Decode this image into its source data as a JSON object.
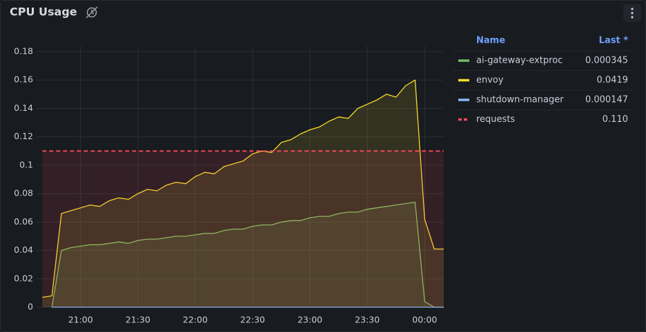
{
  "chart_data": {
    "type": "line",
    "title": "CPU Usage",
    "x": [
      "20:40",
      "20:45",
      "20:50",
      "20:55",
      "21:00",
      "21:05",
      "21:10",
      "21:15",
      "21:20",
      "21:25",
      "21:30",
      "21:35",
      "21:40",
      "21:45",
      "21:50",
      "21:55",
      "22:00",
      "22:05",
      "22:10",
      "22:15",
      "22:20",
      "22:25",
      "22:30",
      "22:35",
      "22:40",
      "22:45",
      "22:50",
      "22:55",
      "23:00",
      "23:05",
      "23:10",
      "23:15",
      "23:20",
      "23:25",
      "23:30",
      "23:35",
      "23:40",
      "23:45",
      "23:50",
      "23:55",
      "00:00",
      "00:05",
      "00:10"
    ],
    "xlim": [
      "20:37",
      "00:10"
    ],
    "xticks": [
      "21:00",
      "21:30",
      "22:00",
      "22:30",
      "23:00",
      "23:30",
      "00:00"
    ],
    "ylim": [
      0,
      0.18
    ],
    "yticks": [
      0,
      0.02,
      0.04,
      0.06,
      0.08,
      0.1,
      0.12,
      0.14,
      0.16,
      0.18
    ],
    "grid": true,
    "legend_columns": [
      "Name",
      "Last *"
    ],
    "series": [
      {
        "name": "ai-gateway-extproc",
        "color": "#73bf69",
        "last": 0.000345,
        "values": [
          null,
          0,
          0.04,
          0.042,
          0.043,
          0.044,
          0.044,
          0.045,
          0.046,
          0.045,
          0.047,
          0.048,
          0.048,
          0.049,
          0.05,
          0.05,
          0.051,
          0.052,
          0.052,
          0.054,
          0.055,
          0.055,
          0.057,
          0.058,
          0.058,
          0.06,
          0.061,
          0.061,
          0.063,
          0.064,
          0.064,
          0.066,
          0.067,
          0.067,
          0.069,
          0.07,
          0.071,
          0.072,
          0.073,
          0.074,
          0.004,
          0,
          0
        ]
      },
      {
        "name": "envoy",
        "color": "#fade2a",
        "last": 0.0419,
        "values": [
          0.007,
          0.008,
          0.066,
          0.068,
          0.07,
          0.072,
          0.071,
          0.075,
          0.077,
          0.076,
          0.08,
          0.083,
          0.082,
          0.086,
          0.088,
          0.087,
          0.092,
          0.095,
          0.094,
          0.099,
          0.101,
          0.103,
          0.108,
          0.11,
          0.109,
          0.116,
          0.118,
          0.122,
          0.125,
          0.127,
          0.131,
          0.134,
          0.133,
          0.14,
          0.143,
          0.146,
          0.15,
          0.148,
          0.156,
          0.16,
          0.062,
          0.041,
          0.041
        ]
      },
      {
        "name": "shutdown-manager",
        "color": "#8ab8ff",
        "last": 0.000147,
        "values": [
          null,
          0,
          0,
          0,
          0,
          0,
          0,
          0,
          0,
          0,
          0,
          0,
          0,
          0,
          0,
          0,
          0,
          0,
          0,
          0,
          0,
          0,
          0,
          0,
          0,
          0,
          0,
          0,
          0,
          0,
          0,
          0,
          0,
          0,
          0,
          0,
          0,
          0,
          0,
          0,
          0,
          0,
          0
        ]
      },
      {
        "name": "requests",
        "color": "#f2495c",
        "dashed": true,
        "last": {
          "value": 0.11,
          "label": "0.110"
        },
        "values": [
          0.11,
          0.11,
          0.11,
          0.11,
          0.11,
          0.11,
          0.11,
          0.11,
          0.11,
          0.11,
          0.11,
          0.11,
          0.11,
          0.11,
          0.11,
          0.11,
          0.11,
          0.11,
          0.11,
          0.11,
          0.11,
          0.11,
          0.11,
          0.11,
          0.11,
          0.11,
          0.11,
          0.11,
          0.11,
          0.11,
          0.11,
          0.11,
          0.11,
          0.11,
          0.11,
          0.11,
          0.11,
          0.11,
          0.11,
          0.11,
          0.11,
          0.11,
          0.11
        ]
      }
    ]
  }
}
